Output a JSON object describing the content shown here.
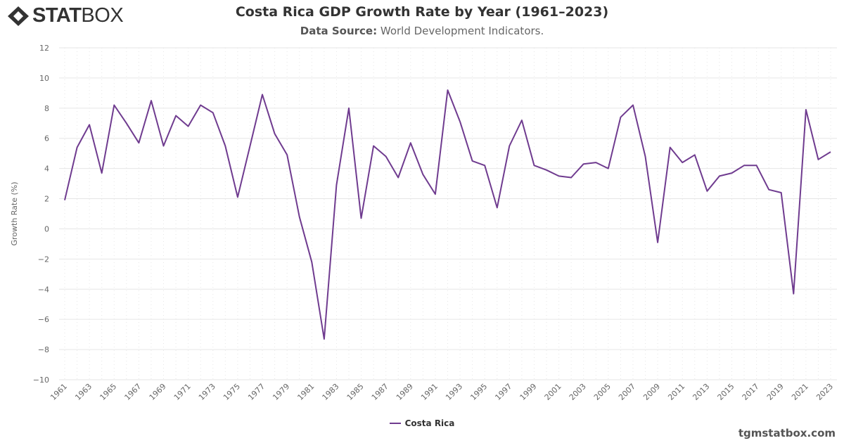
{
  "logo": {
    "text_bold": "STAT",
    "text_light": "BOX"
  },
  "header": {
    "title": "Costa Rica GDP Growth Rate by Year (1961–2023)",
    "source_label": "Data Source:",
    "source_value": "World Development Indicators."
  },
  "footer": {
    "site": "tgmstatbox.com"
  },
  "colors": {
    "series": "#6f3b8f",
    "grid": "#e6e6e6",
    "text": "#666666"
  },
  "chart_data": {
    "type": "line",
    "title": "Costa Rica GDP Growth Rate by Year (1961–2023)",
    "xlabel": "",
    "ylabel": "Growth Rate (%)",
    "ylim": [
      -10,
      12
    ],
    "yticks": [
      -10,
      -8,
      -6,
      -4,
      -2,
      0,
      2,
      4,
      6,
      8,
      10,
      12
    ],
    "xlim": [
      1961,
      2023
    ],
    "xtick_step": 2,
    "grid": true,
    "legend": "bottom-center",
    "series": [
      {
        "name": "Costa Rica",
        "x": [
          1961,
          1962,
          1963,
          1964,
          1965,
          1966,
          1967,
          1968,
          1969,
          1970,
          1971,
          1972,
          1973,
          1974,
          1975,
          1976,
          1977,
          1978,
          1979,
          1980,
          1981,
          1982,
          1983,
          1984,
          1985,
          1986,
          1987,
          1988,
          1989,
          1990,
          1991,
          1992,
          1993,
          1994,
          1995,
          1996,
          1997,
          1998,
          1999,
          2000,
          2001,
          2002,
          2003,
          2004,
          2005,
          2006,
          2007,
          2008,
          2009,
          2010,
          2011,
          2012,
          2013,
          2014,
          2015,
          2016,
          2017,
          2018,
          2019,
          2020,
          2021,
          2022,
          2023
        ],
        "values": [
          1.9,
          5.4,
          6.9,
          3.7,
          8.2,
          7.0,
          5.7,
          8.5,
          5.5,
          7.5,
          6.8,
          8.2,
          7.7,
          5.5,
          2.1,
          5.5,
          8.9,
          6.3,
          4.9,
          0.8,
          -2.2,
          -7.3,
          2.9,
          8.0,
          0.7,
          5.5,
          4.8,
          3.4,
          5.7,
          3.6,
          2.3,
          9.2,
          7.1,
          4.5,
          4.2,
          1.4,
          5.5,
          7.2,
          4.2,
          3.9,
          3.5,
          3.4,
          4.3,
          4.4,
          4.0,
          7.4,
          8.2,
          4.8,
          -0.9,
          5.4,
          4.4,
          4.9,
          2.5,
          3.5,
          3.7,
          4.2,
          4.2,
          2.6,
          2.4,
          -4.3,
          7.9,
          4.6,
          5.1
        ]
      }
    ]
  }
}
